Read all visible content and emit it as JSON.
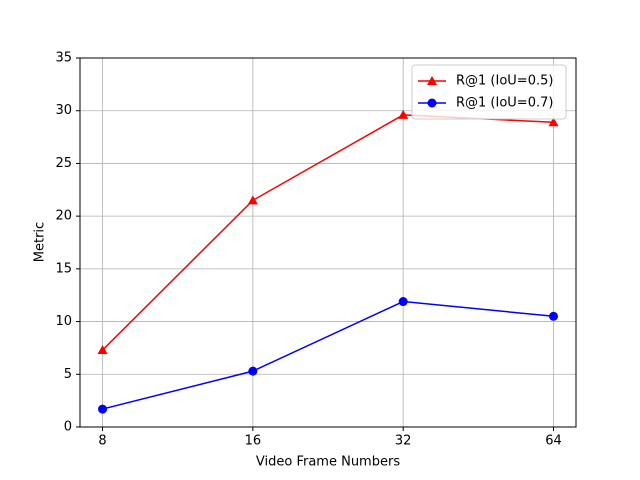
{
  "chart_data": {
    "type": "line",
    "xlabel": "Video Frame Numbers",
    "ylabel": "Metric",
    "x": [
      8,
      16,
      32,
      64
    ],
    "xscale": "log",
    "xlim": [
      7.21,
      71.0
    ],
    "xticks": [
      8,
      16,
      32,
      64
    ],
    "ylim": [
      0,
      35
    ],
    "yticks": [
      0,
      5,
      10,
      15,
      20,
      25,
      30,
      35
    ],
    "grid": true,
    "legend": "upper right",
    "series": [
      {
        "name": "R@1 (IoU=0.5)",
        "color": "#ff0000",
        "marker": "triangle",
        "values": [
          7.3,
          21.5,
          29.6,
          28.9
        ]
      },
      {
        "name": "R@1 (IoU=0.7)",
        "color": "#0000ff",
        "marker": "circle",
        "values": [
          1.7,
          5.3,
          11.9,
          10.5
        ]
      }
    ]
  }
}
